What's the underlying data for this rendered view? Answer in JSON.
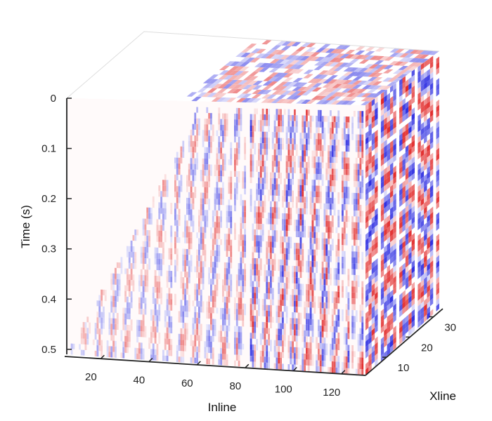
{
  "chart_data": {
    "type": "heatmap",
    "subtype": "3d-seismic-cube",
    "xlabel": "Inline",
    "ylabel": "Xline",
    "zlabel": "Time (s)",
    "x_ticks": [
      20,
      40,
      60,
      80,
      100,
      120
    ],
    "y_ticks": [
      10,
      20,
      30
    ],
    "z_ticks": [
      0,
      0.1,
      0.2,
      0.3,
      0.4,
      0.5
    ],
    "x_range": [
      5,
      130
    ],
    "y_range": [
      1,
      34
    ],
    "z_range": [
      0,
      0.51
    ],
    "colormap": {
      "negative": "#3030e0",
      "zero": "#ffffff",
      "positive": "#e03030"
    },
    "colorscale": "blue-white-red diverging",
    "grid": false
  }
}
